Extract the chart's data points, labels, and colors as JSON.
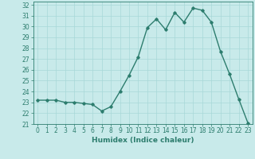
{
  "x": [
    0,
    1,
    2,
    3,
    4,
    5,
    6,
    7,
    8,
    9,
    10,
    11,
    12,
    13,
    14,
    15,
    16,
    17,
    18,
    19,
    20,
    21,
    22,
    23
  ],
  "y": [
    23.2,
    23.2,
    23.2,
    23.0,
    23.0,
    22.9,
    22.8,
    22.2,
    22.6,
    24.0,
    25.5,
    27.2,
    29.9,
    30.7,
    29.7,
    31.3,
    30.4,
    31.7,
    31.5,
    30.4,
    27.7,
    25.6,
    23.3,
    21.1
  ],
  "xlabel": "Humidex (Indice chaleur)",
  "xlim": [
    -0.5,
    23.5
  ],
  "ylim": [
    21,
    32.3
  ],
  "yticks": [
    21,
    22,
    23,
    24,
    25,
    26,
    27,
    28,
    29,
    30,
    31,
    32
  ],
  "xticks": [
    0,
    1,
    2,
    3,
    4,
    5,
    6,
    7,
    8,
    9,
    10,
    11,
    12,
    13,
    14,
    15,
    16,
    17,
    18,
    19,
    20,
    21,
    22,
    23
  ],
  "line_color": "#2d7d6e",
  "marker": "D",
  "marker_size": 1.8,
  "line_width": 1.0,
  "bg_color": "#c8eaea",
  "grid_color": "#a8d8d8",
  "label_fontsize": 6.5,
  "tick_fontsize": 5.5
}
